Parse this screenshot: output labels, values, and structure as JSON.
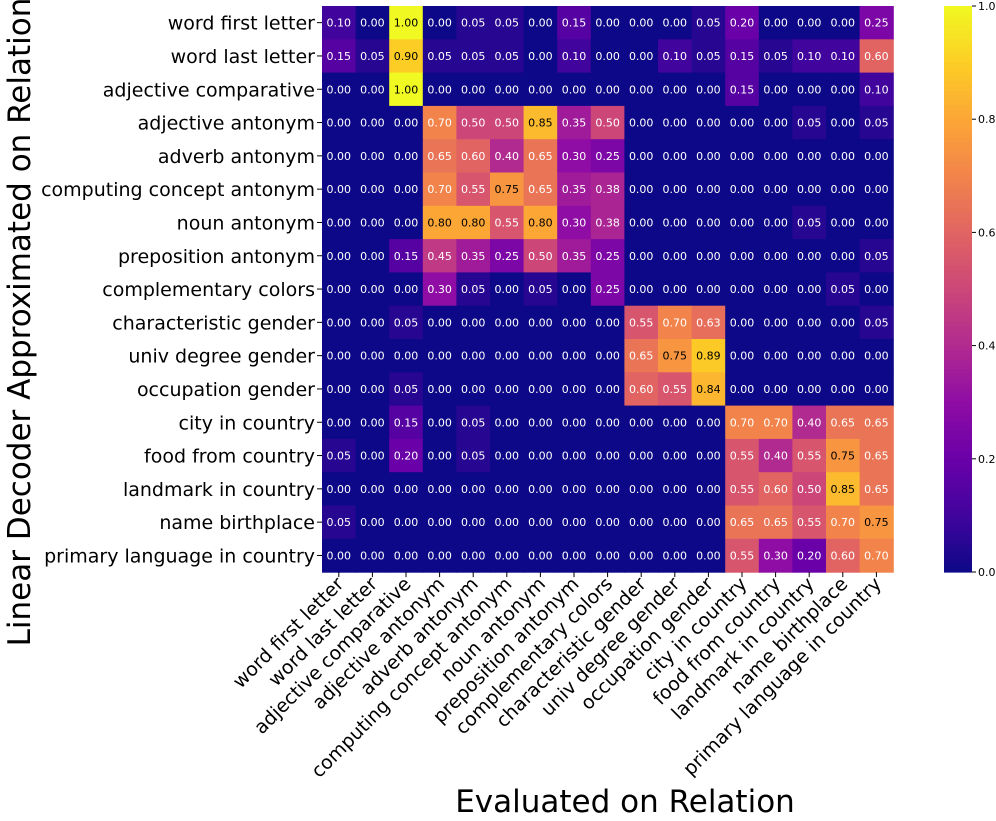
{
  "chart_data": {
    "type": "heatmap",
    "title": "",
    "xlabel": "Evaluated on Relation",
    "ylabel": "Linear Decoder Approximated on Relation",
    "rows": [
      "word first letter",
      "word last letter",
      "adjective comparative",
      "adjective antonym",
      "adverb antonym",
      "computing concept antonym",
      "noun antonym",
      "preposition antonym",
      "complementary colors",
      "characteristic gender",
      "univ degree gender",
      "occupation gender",
      "city in country",
      "food from country",
      "landmark in country",
      "name birthplace",
      "primary language in country"
    ],
    "columns": [
      "word first letter",
      "word last letter",
      "adjective comparative",
      "adjective antonym",
      "adverb antonym",
      "computing concept antonym",
      "noun antonym",
      "preposition antonym",
      "complementary colors",
      "characteristic gender",
      "univ degree gender",
      "occupation gender",
      "city in country",
      "food from country",
      "landmark in country",
      "name birthplace",
      "primary language in country"
    ],
    "values": [
      [
        0.1,
        0.0,
        1.0,
        0.0,
        0.05,
        0.05,
        0.0,
        0.15,
        0.0,
        0.0,
        0.0,
        0.05,
        0.2,
        0.0,
        0.0,
        0.0,
        0.25
      ],
      [
        0.15,
        0.05,
        0.9,
        0.05,
        0.05,
        0.05,
        0.0,
        0.1,
        0.0,
        0.0,
        0.1,
        0.05,
        0.15,
        0.05,
        0.1,
        0.1,
        0.6
      ],
      [
        0.0,
        0.0,
        1.0,
        0.0,
        0.0,
        0.0,
        0.0,
        0.0,
        0.0,
        0.0,
        0.0,
        0.0,
        0.15,
        0.0,
        0.0,
        0.0,
        0.1
      ],
      [
        0.0,
        0.0,
        0.0,
        0.7,
        0.5,
        0.5,
        0.85,
        0.35,
        0.5,
        0.0,
        0.0,
        0.0,
        0.0,
        0.0,
        0.05,
        0.0,
        0.05
      ],
      [
        0.0,
        0.0,
        0.0,
        0.65,
        0.6,
        0.4,
        0.65,
        0.3,
        0.25,
        0.0,
        0.0,
        0.0,
        0.0,
        0.0,
        0.0,
        0.0,
        0.0
      ],
      [
        0.0,
        0.0,
        0.0,
        0.7,
        0.55,
        0.75,
        0.65,
        0.35,
        0.38,
        0.0,
        0.0,
        0.0,
        0.0,
        0.0,
        0.0,
        0.0,
        0.0
      ],
      [
        0.0,
        0.0,
        0.0,
        0.8,
        0.8,
        0.55,
        0.8,
        0.3,
        0.38,
        0.0,
        0.0,
        0.0,
        0.0,
        0.0,
        0.05,
        0.0,
        0.0
      ],
      [
        0.0,
        0.0,
        0.15,
        0.45,
        0.35,
        0.25,
        0.5,
        0.35,
        0.25,
        0.0,
        0.0,
        0.0,
        0.0,
        0.0,
        0.0,
        0.0,
        0.05
      ],
      [
        0.0,
        0.0,
        0.0,
        0.3,
        0.05,
        0.0,
        0.05,
        0.0,
        0.25,
        0.0,
        0.0,
        0.0,
        0.0,
        0.0,
        0.0,
        0.05,
        0.0
      ],
      [
        0.0,
        0.0,
        0.05,
        0.0,
        0.0,
        0.0,
        0.0,
        0.0,
        0.0,
        0.55,
        0.7,
        0.63,
        0.0,
        0.0,
        0.0,
        0.0,
        0.05
      ],
      [
        0.0,
        0.0,
        0.0,
        0.0,
        0.0,
        0.0,
        0.0,
        0.0,
        0.0,
        0.65,
        0.75,
        0.89,
        0.0,
        0.0,
        0.0,
        0.0,
        0.0
      ],
      [
        0.0,
        0.0,
        0.05,
        0.0,
        0.0,
        0.0,
        0.0,
        0.0,
        0.0,
        0.6,
        0.55,
        0.84,
        0.0,
        0.0,
        0.0,
        0.0,
        0.0
      ],
      [
        0.0,
        0.0,
        0.15,
        0.0,
        0.05,
        0.0,
        0.0,
        0.0,
        0.0,
        0.0,
        0.0,
        0.0,
        0.7,
        0.7,
        0.4,
        0.65,
        0.65
      ],
      [
        0.05,
        0.0,
        0.2,
        0.0,
        0.05,
        0.0,
        0.0,
        0.0,
        0.0,
        0.0,
        0.0,
        0.0,
        0.55,
        0.4,
        0.55,
        0.75,
        0.65
      ],
      [
        0.0,
        0.0,
        0.0,
        0.0,
        0.0,
        0.0,
        0.0,
        0.0,
        0.0,
        0.0,
        0.0,
        0.0,
        0.55,
        0.6,
        0.5,
        0.85,
        0.65
      ],
      [
        0.05,
        0.0,
        0.0,
        0.0,
        0.0,
        0.0,
        0.0,
        0.0,
        0.0,
        0.0,
        0.0,
        0.0,
        0.65,
        0.65,
        0.55,
        0.7,
        0.75
      ],
      [
        0.0,
        0.0,
        0.0,
        0.0,
        0.0,
        0.0,
        0.0,
        0.0,
        0.0,
        0.0,
        0.0,
        0.0,
        0.55,
        0.3,
        0.2,
        0.6,
        0.7
      ]
    ],
    "vmin": 0.0,
    "vmax": 1.0,
    "colormap": "plasma",
    "colorbar_ticks": [
      "0.0",
      "0.2",
      "0.4",
      "0.6",
      "0.8",
      "1.0"
    ]
  }
}
